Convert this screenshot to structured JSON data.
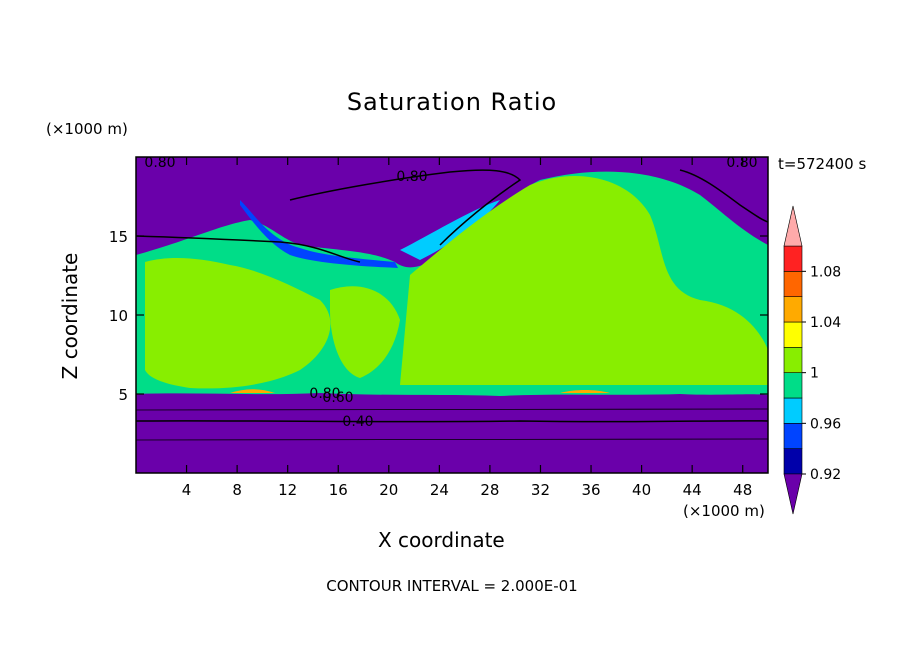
{
  "chart_data": {
    "type": "heatmap",
    "title": "Saturation Ratio",
    "xlabel": "X coordinate",
    "ylabel": "Z coordinate",
    "x_unit": "(×1000 m)",
    "y_unit": "(×1000 m)",
    "xlim": [
      0,
      50
    ],
    "ylim": [
      0,
      20
    ],
    "x_ticks": [
      4,
      8,
      12,
      16,
      20,
      24,
      28,
      32,
      36,
      40,
      44,
      48
    ],
    "y_ticks": [
      5,
      10,
      15
    ],
    "time_label": "t=572400 s",
    "footer": "CONTOUR INTERVAL = 2.000E-01",
    "contour_labels": [
      "0.80",
      "0.80",
      "0.80",
      "0.80",
      "0.60",
      "0.40"
    ],
    "colorbar": {
      "tick_labels": [
        "1.08",
        "1.04",
        "1",
        "0.96",
        "0.92"
      ],
      "levels": [
        0.9,
        0.92,
        0.94,
        0.96,
        0.98,
        1.0,
        1.02,
        1.04,
        1.06,
        1.08,
        1.1
      ],
      "colors": [
        "#6a00aa",
        "#0000aa",
        "#0044ff",
        "#00ccff",
        "#00dd88",
        "#88ee00",
        "#ffff00",
        "#ffaa00",
        "#ff6600",
        "#ff2222",
        "#ffaaaa"
      ]
    },
    "regions": [
      {
        "name": "lower-dry-layer",
        "value": 0.6,
        "color": "#6a00aa"
      },
      {
        "name": "upper-dry-layer",
        "value": 0.8,
        "color": "#6a00aa"
      },
      {
        "name": "saturated-cloud-layer",
        "value": 0.99,
        "color": "#00dd88"
      },
      {
        "name": "supersaturated-patches",
        "value": 1.01,
        "color": "#88ee00"
      }
    ]
  }
}
